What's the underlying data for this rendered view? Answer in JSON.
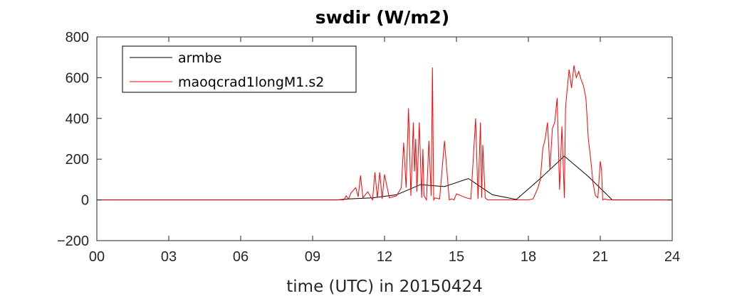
{
  "chart_data": {
    "type": "line",
    "title": "swdir  (W/m2)",
    "xlabel": "time (UTC) in 20150424",
    "ylabel": "",
    "xlim": [
      0,
      24
    ],
    "ylim": [
      -200,
      800
    ],
    "xticks": [
      "00",
      "03",
      "06",
      "09",
      "12",
      "15",
      "18",
      "21",
      "24"
    ],
    "xtick_values": [
      0,
      3,
      6,
      9,
      12,
      15,
      18,
      21,
      24
    ],
    "yticks": [
      "−200",
      "0",
      "200",
      "400",
      "600",
      "800"
    ],
    "ytick_values": [
      -200,
      0,
      200,
      400,
      600,
      800
    ],
    "grid": false,
    "legend_position": "top-left",
    "series": [
      {
        "name": "armbe",
        "color": "#000000",
        "x": [
          0,
          1,
          2,
          3,
          4,
          5,
          6,
          7,
          8,
          9,
          10,
          10.5,
          11.5,
          12.5,
          13.5,
          14.5,
          15.5,
          16.5,
          17.5,
          18.5,
          19.5,
          20.5,
          21.5,
          22.5,
          23.5,
          24
        ],
        "y": [
          0,
          0,
          0,
          0,
          0,
          0,
          0,
          0,
          0,
          0,
          0,
          5,
          10,
          25,
          75,
          65,
          105,
          25,
          2,
          105,
          215,
          115,
          0,
          0,
          0,
          0
        ]
      },
      {
        "name": "maoqcrad1longM1.s2",
        "color": "#ff0000",
        "x": [
          0,
          10.3,
          10.4,
          10.5,
          10.6,
          10.8,
          10.9,
          11.0,
          11.1,
          11.3,
          11.5,
          11.6,
          11.7,
          11.8,
          11.9,
          12.0,
          12.2,
          12.5,
          12.7,
          12.8,
          12.9,
          13.0,
          13.1,
          13.2,
          13.25,
          13.3,
          13.35,
          13.45,
          13.55,
          13.6,
          13.65,
          13.75,
          13.85,
          13.95,
          14.0,
          14.05,
          14.1,
          14.3,
          14.5,
          14.7,
          14.8,
          14.9,
          15.0,
          15.4,
          15.6,
          15.7,
          15.8,
          15.9,
          16.0,
          16.05,
          16.1,
          16.2,
          16.3,
          16.4,
          16.5,
          16.8,
          17.0,
          17.2,
          17.4,
          17.6,
          17.8,
          18.0,
          18.2,
          18.4,
          18.5,
          18.6,
          18.7,
          18.8,
          18.9,
          19.0,
          19.1,
          19.2,
          19.3,
          19.4,
          19.5,
          19.55,
          19.6,
          19.7,
          19.8,
          19.9,
          20.0,
          20.1,
          20.2,
          20.3,
          20.4,
          20.5,
          20.6,
          20.7,
          20.8,
          20.9,
          21.0,
          21.05,
          21.1,
          21.2,
          21.3,
          21.5,
          22.0,
          24
        ],
        "y": [
          0,
          0,
          20,
          5,
          35,
          60,
          15,
          120,
          10,
          40,
          0,
          135,
          10,
          135,
          5,
          125,
          10,
          20,
          60,
          280,
          60,
          450,
          20,
          380,
          140,
          300,
          40,
          380,
          10,
          250,
          20,
          0,
          290,
          20,
          650,
          0,
          10,
          5,
          290,
          0,
          5,
          0,
          30,
          10,
          5,
          200,
          400,
          5,
          380,
          10,
          270,
          10,
          0,
          0,
          0,
          0,
          0,
          0,
          0,
          0,
          0,
          0,
          5,
          60,
          100,
          250,
          300,
          380,
          150,
          350,
          380,
          500,
          50,
          360,
          10,
          450,
          520,
          640,
          550,
          660,
          600,
          630,
          590,
          560,
          500,
          300,
          200,
          80,
          20,
          10,
          190,
          150,
          0,
          5,
          0,
          0,
          0,
          0
        ]
      }
    ]
  }
}
